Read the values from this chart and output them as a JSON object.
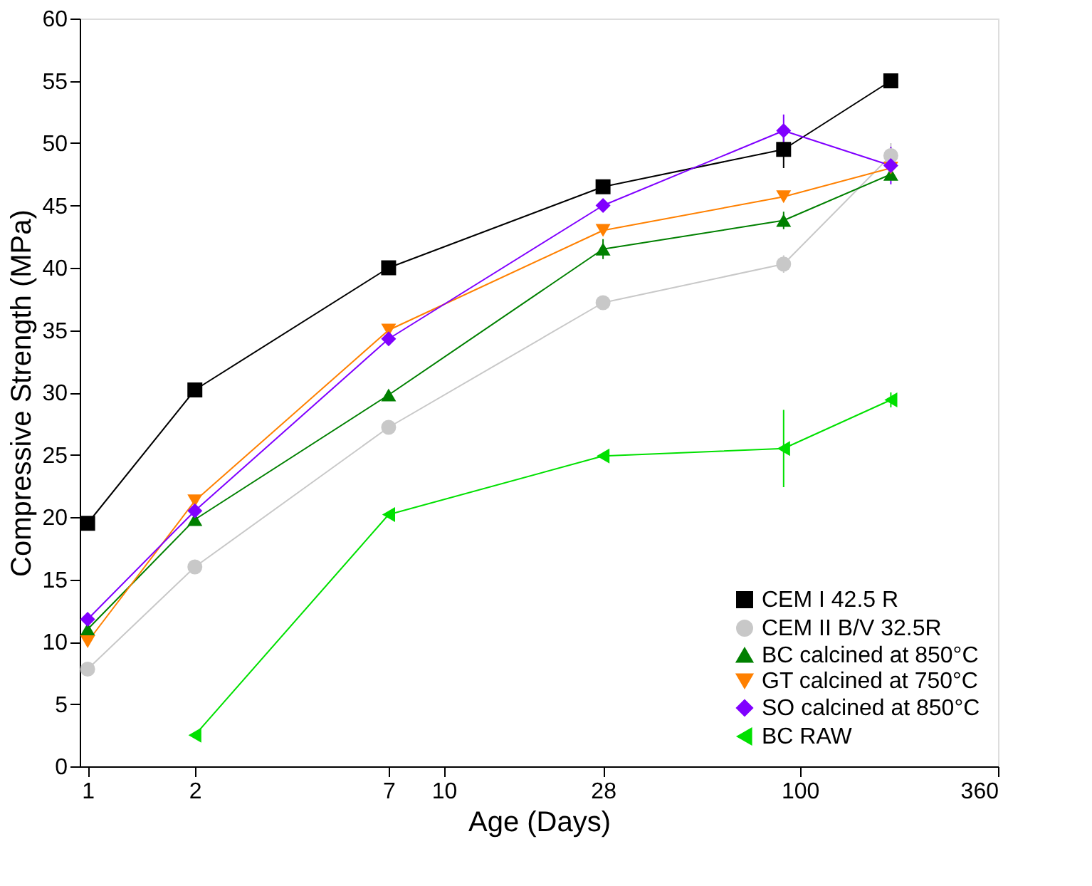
{
  "chart_data": {
    "type": "line",
    "xlabel": "Age (Days)",
    "ylabel": "Compressive Strength (MPa)",
    "log": "x",
    "xlim": [
      0.95,
      360
    ],
    "xticks": [
      1,
      2,
      7,
      10,
      28,
      100,
      360
    ],
    "ylim": [
      0,
      60
    ],
    "yticks": [
      0,
      5,
      10,
      15,
      20,
      25,
      30,
      35,
      40,
      45,
      50,
      55,
      60
    ],
    "grid": false,
    "legend": "bottom right",
    "series": [
      {
        "name": "CEM I 42.5 R",
        "color": "#000000",
        "marker": "square",
        "x": [
          1,
          2,
          7,
          28,
          90,
          180
        ],
        "values": [
          19.5,
          30.2,
          40,
          46.5,
          49.5,
          55
        ],
        "errors": [
          null,
          null,
          null,
          null,
          1.5,
          null
        ]
      },
      {
        "name": "CEM II B/V 32.5R",
        "color": "#c8c8c8",
        "marker": "circle",
        "x": [
          1,
          2,
          7,
          28,
          90,
          180
        ],
        "values": [
          7.8,
          16,
          27.2,
          37.2,
          40.3,
          49
        ],
        "errors": [
          null,
          null,
          null,
          null,
          0.7,
          1
        ]
      },
      {
        "name": "BC calcined at 850°C",
        "color": "#008000",
        "marker": "triangle-up",
        "x": [
          1,
          2,
          7,
          28,
          90,
          180
        ],
        "values": [
          11,
          19.8,
          29.8,
          41.5,
          43.8,
          47.5
        ],
        "errors": [
          null,
          null,
          null,
          0.8,
          0.7,
          null
        ]
      },
      {
        "name": "GT calcined at 750°C",
        "color": "#ff8000",
        "marker": "triangle-down",
        "x": [
          1,
          2,
          7,
          28,
          90,
          180
        ],
        "values": [
          10,
          21.3,
          35,
          43,
          45.7,
          48
        ],
        "errors": [
          null,
          null,
          null,
          null,
          null,
          null
        ]
      },
      {
        "name": "SO calcined at 850°C",
        "color": "#8000ff",
        "marker": "diamond",
        "x": [
          1,
          2,
          7,
          28,
          90,
          180
        ],
        "values": [
          11.8,
          20.5,
          34.3,
          45,
          51,
          48.2
        ],
        "errors": [
          null,
          null,
          null,
          null,
          1.3,
          1.5
        ]
      },
      {
        "name": "BC RAW",
        "color": "#00e000",
        "marker": "triangle-left",
        "x": [
          2,
          7,
          28,
          90,
          180
        ],
        "values": [
          2.5,
          20.2,
          24.9,
          25.5,
          29.4
        ],
        "errors": [
          null,
          null,
          null,
          3.1,
          0.6
        ]
      }
    ]
  }
}
